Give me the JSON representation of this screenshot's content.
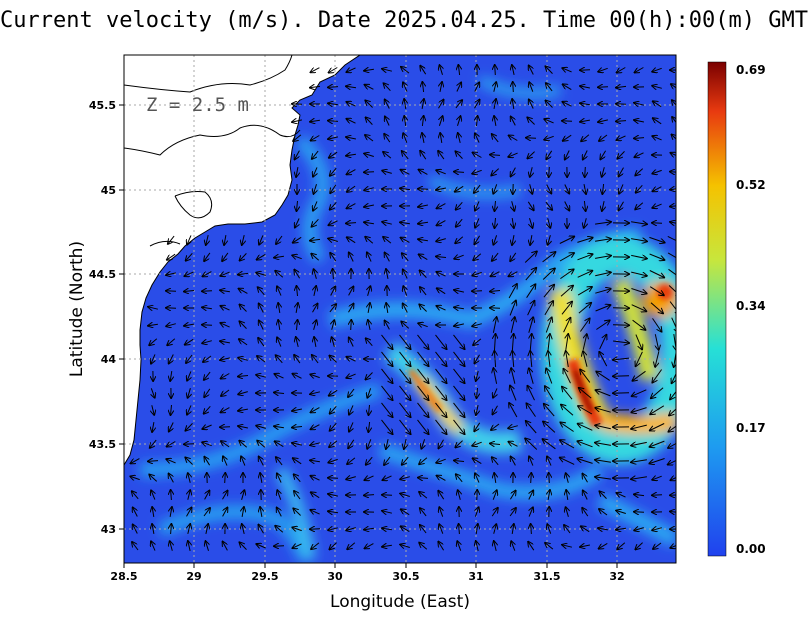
{
  "title": "Current velocity (m/s). Date 2025.04.25. Time 00(h):00(m) GMT",
  "depth_label": "Z = 2.5 m",
  "x_axis": {
    "label": "Longitude (East)",
    "ticks": [
      "28.5",
      "29",
      "29.5",
      "30",
      "30.5",
      "31",
      "31.5",
      "32"
    ]
  },
  "y_axis": {
    "label": "Latitude (North)",
    "ticks": [
      "43",
      "43.5",
      "44",
      "44.5",
      "45",
      "45.5"
    ]
  },
  "colorbar": {
    "ticks": [
      "0.00",
      "0.17",
      "0.34",
      "0.52",
      "0.69"
    ],
    "colors": [
      "#2041ee",
      "#1e9bf0",
      "#26e0d6",
      "#c8e63c",
      "#f5c200",
      "#e83a10",
      "#7a0000"
    ]
  },
  "chart_data": {
    "type": "heatmap",
    "quantity": "current velocity",
    "units": "m/s",
    "date": "2025.04.25",
    "time": "00(h):00(m) GMT",
    "depth": "2.5 m",
    "xlim": [
      28.5,
      32.4
    ],
    "ylim": [
      42.8,
      45.8
    ],
    "value_range": [
      0.0,
      0.69
    ],
    "features": [
      {
        "name": "anticyclonic eddy",
        "center": [
          32.15,
          44.05
        ],
        "max_speed": 0.69
      },
      {
        "name": "frontal jet",
        "lon_range": [
          30.3,
          31.3
        ],
        "lat_range": [
          43.4,
          44.1
        ],
        "max_speed": 0.5
      }
    ]
  }
}
